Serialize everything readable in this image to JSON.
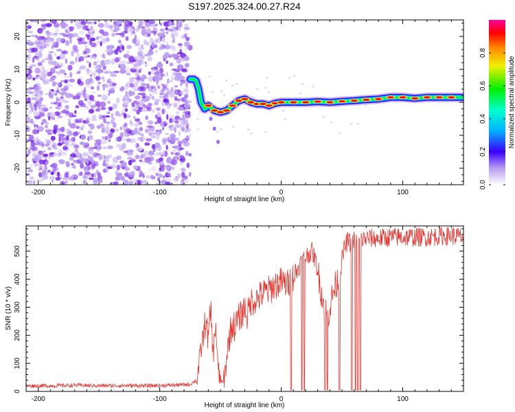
{
  "title": "S197.2025.324.00.27.R24",
  "colors": {
    "snr_line": "#e8302a",
    "low_cloud": "#b79cf0",
    "mid_cloud": "#7a2bea",
    "frame": "#000000"
  },
  "chart_data": [
    {
      "type": "heatmap",
      "title": "S197.2025.324.00.27.R24",
      "xlabel": "Height of straight line (km)",
      "ylabel": "Frequency (Hz)",
      "xlim": [
        -210,
        150
      ],
      "ylim": [
        -25,
        25
      ],
      "xticks": [
        -200,
        -100,
        0,
        100
      ],
      "xtick_labels": [
        "-200",
        "-100",
        "0",
        "100"
      ],
      "yticks": [
        -20,
        -10,
        0,
        10,
        20
      ],
      "ytick_labels": [
        "-20",
        "-10",
        "0",
        "10",
        "20"
      ],
      "noise_region_x": [
        -210,
        -75
      ],
      "ridge": {
        "x": [
          -75,
          -72,
          -70,
          -68,
          -66,
          -63,
          -60,
          -55,
          -50,
          -45,
          -40,
          -35,
          -30,
          -25,
          -20,
          -15,
          -10,
          -5,
          0,
          10,
          20,
          30,
          40,
          50,
          60,
          70,
          80,
          90,
          100,
          110,
          120,
          130,
          140,
          150
        ],
        "freq": [
          7,
          7,
          6.5,
          4,
          0,
          -2,
          -1,
          -2.5,
          -3,
          -2.5,
          -1,
          0.5,
          1,
          0,
          -0.5,
          -0.5,
          -1,
          -0.3,
          0,
          0,
          0,
          0.2,
          0,
          0.3,
          0.5,
          0.8,
          1,
          1.5,
          1.5,
          1.2,
          1.5,
          1.5,
          1.5,
          1.5
        ]
      },
      "colorbar": {
        "label": "Normalized spectral amplitude",
        "range": [
          0,
          1
        ],
        "ticks": [
          0.0,
          0.2,
          0.4,
          0.6,
          0.8
        ],
        "tick_labels": [
          "0.0",
          "0.2",
          "0.4",
          "0.6",
          "0.8"
        ]
      }
    },
    {
      "type": "line",
      "xlabel": "Height of straight line (km)",
      "ylabel": "SNR (10 * v/v)",
      "xlim": [
        -210,
        150
      ],
      "ylim": [
        0,
        590
      ],
      "xticks": [
        -200,
        -100,
        0,
        100
      ],
      "xtick_labels": [
        "-200",
        "-100",
        "0",
        "100"
      ],
      "yticks": [
        0,
        100,
        200,
        300,
        400,
        500
      ],
      "ytick_labels": [
        "0",
        "100",
        "200",
        "300",
        "400",
        "500"
      ],
      "series": [
        {
          "name": "SNR",
          "x": [
            -210,
            -190,
            -170,
            -150,
            -130,
            -110,
            -90,
            -75,
            -70,
            -68,
            -66,
            -64,
            -62,
            -60,
            -58,
            -56,
            -54,
            -52,
            -50,
            -48,
            -46,
            -44,
            -42,
            -40,
            -38,
            -35,
            -32,
            -30,
            -28,
            -25,
            -20,
            -15,
            -10,
            -5,
            0,
            5,
            8,
            10,
            12,
            15,
            18,
            20,
            25,
            28,
            30,
            32,
            34,
            36,
            38,
            40,
            42,
            44,
            46,
            48,
            50,
            52,
            55,
            58,
            60,
            62,
            65,
            70,
            80,
            90,
            100,
            110,
            120,
            130,
            140,
            150
          ],
          "values": [
            20,
            20,
            22,
            20,
            21,
            20,
            22,
            25,
            40,
            80,
            150,
            200,
            260,
            180,
            300,
            120,
            250,
            70,
            40,
            30,
            70,
            160,
            210,
            240,
            230,
            260,
            280,
            300,
            270,
            320,
            330,
            350,
            360,
            380,
            390,
            380,
            400,
            410,
            420,
            450,
            470,
            480,
            500,
            470,
            430,
            380,
            330,
            300,
            260,
            300,
            340,
            370,
            390,
            410,
            470,
            510,
            540,
            520,
            540,
            530,
            540,
            545,
            545,
            550,
            550,
            550,
            550,
            555,
            555,
            550
          ],
          "dropouts": [
            8,
            17,
            19,
            36,
            38,
            48,
            58,
            61,
            63,
            65
          ]
        }
      ]
    }
  ]
}
